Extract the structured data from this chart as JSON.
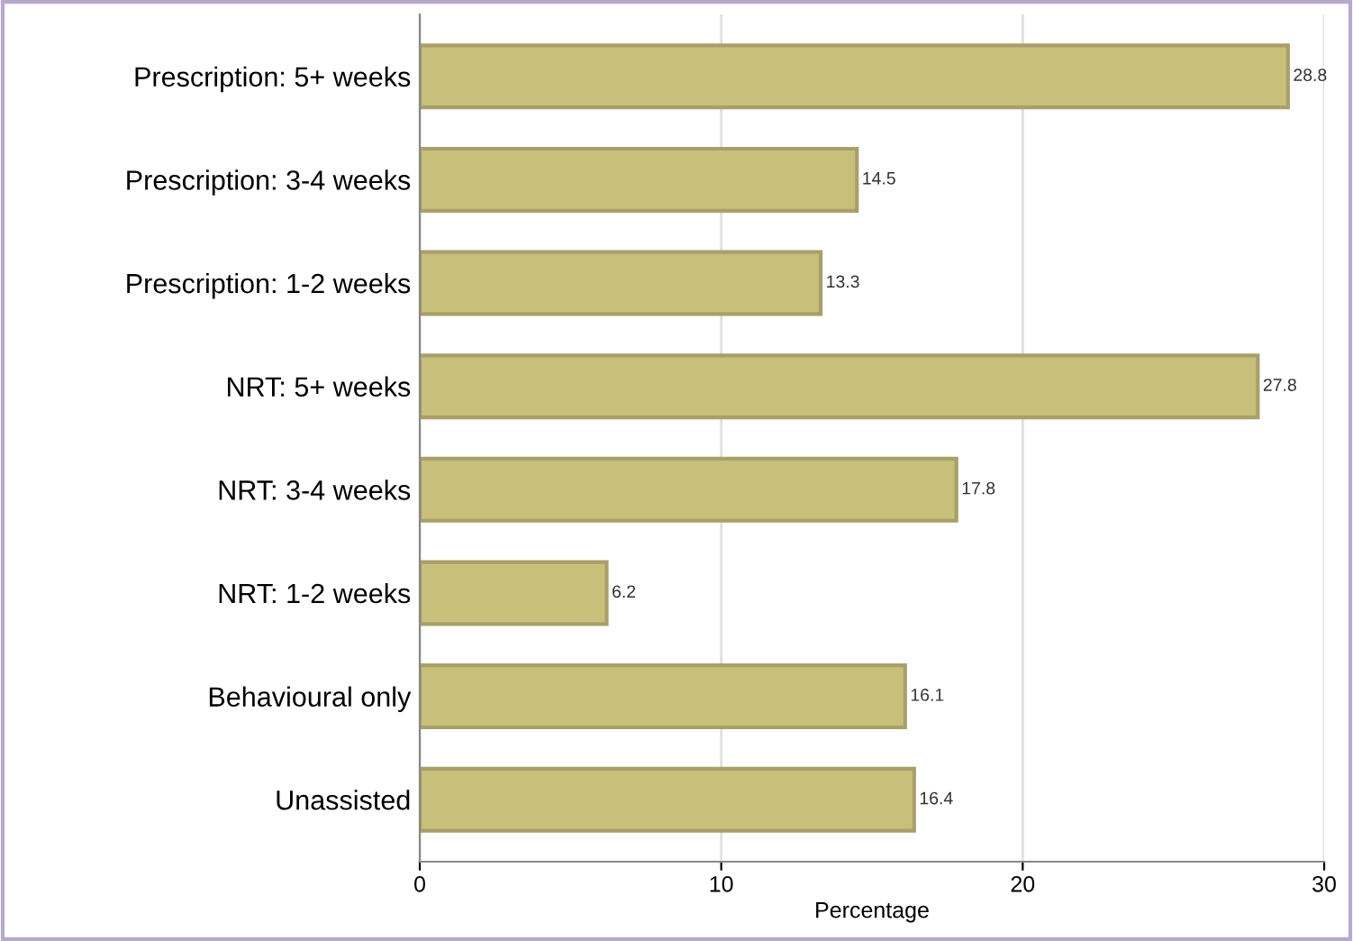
{
  "chart_data": {
    "type": "bar",
    "orientation": "horizontal",
    "xlabel": "Percentage",
    "categories": [
      "Prescription: 5+ weeks",
      "Prescription: 3-4 weeks",
      "Prescription: 1-2 weeks",
      "NRT: 5+ weeks",
      "NRT: 3-4 weeks",
      "NRT: 1-2 weeks",
      "Behavioural only",
      "Unassisted"
    ],
    "values": [
      28.8,
      14.5,
      13.3,
      27.8,
      17.8,
      6.2,
      16.1,
      16.4
    ],
    "color": "#c8c07a",
    "xlim": [
      0,
      30
    ],
    "xticks": [
      0,
      10,
      20,
      30
    ],
    "grid": "x",
    "data_labels": true
  }
}
